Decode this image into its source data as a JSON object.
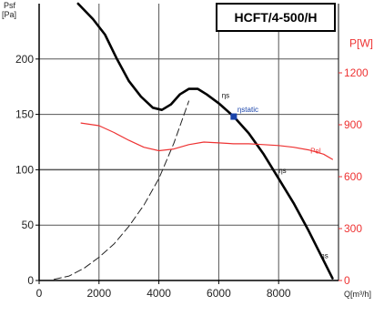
{
  "chart_data": {
    "type": "line",
    "title": "HCFT/4-500/H",
    "y_axis_left": {
      "label_top": "Psf",
      "label_unit": "[Pa]",
      "ylim": [
        0,
        250
      ],
      "ticks": [
        0,
        50,
        100,
        150,
        200
      ]
    },
    "y_axis_right": {
      "label": "P[W]",
      "ylim": [
        0,
        1600
      ],
      "ticks": [
        0,
        300,
        600,
        900,
        1200
      ]
    },
    "x_axis": {
      "label": "Q[m³/h]",
      "xlim": [
        0,
        10000
      ],
      "ticks": [
        0,
        2000,
        4000,
        6000,
        8000
      ]
    },
    "grid": true,
    "series": [
      {
        "axis": "left",
        "style": "solid-thick",
        "color": "#000000",
        "x": [
          1300,
          1800,
          2200,
          2600,
          3000,
          3400,
          3800,
          4100,
          4400,
          4700,
          5000,
          5300,
          5600,
          6000,
          6500,
          7000,
          7500,
          8000,
          8500,
          9000,
          9500,
          9800
        ],
        "y": [
          250,
          236,
          222,
          200,
          180,
          166,
          156,
          154,
          159,
          168,
          173,
          173,
          168,
          160,
          148,
          133,
          114,
          92,
          70,
          45,
          18,
          2
        ]
      },
      {
        "axis": "left",
        "style": "dashed",
        "color": "#222222",
        "x": [
          500,
          1000,
          1500,
          2000,
          2500,
          3000,
          3500,
          4000,
          4500,
          5000
        ],
        "y": [
          1,
          4,
          11,
          21,
          33,
          49,
          68,
          92,
          124,
          162
        ]
      },
      {
        "name": "Pel",
        "axis": "right",
        "style": "solid",
        "color": "#ee3333",
        "x": [
          1400,
          2000,
          2500,
          3000,
          3500,
          4000,
          4500,
          5000,
          5500,
          6000,
          6500,
          7000,
          7500,
          8000,
          8500,
          9000,
          9500,
          9800
        ],
        "y": [
          910,
          895,
          855,
          810,
          770,
          750,
          760,
          785,
          800,
          795,
          790,
          790,
          785,
          780,
          770,
          755,
          730,
          700
        ]
      }
    ],
    "annotations": [
      {
        "text": "ηstatic",
        "x": 6500,
        "y": 148,
        "color": "#1a44aa"
      },
      {
        "text": "ηs",
        "x": 6100,
        "y": 165
      },
      {
        "text": "ηs",
        "x": 8000,
        "y": 97
      },
      {
        "text": "ηs",
        "x": 9400,
        "y": 20
      }
    ]
  }
}
